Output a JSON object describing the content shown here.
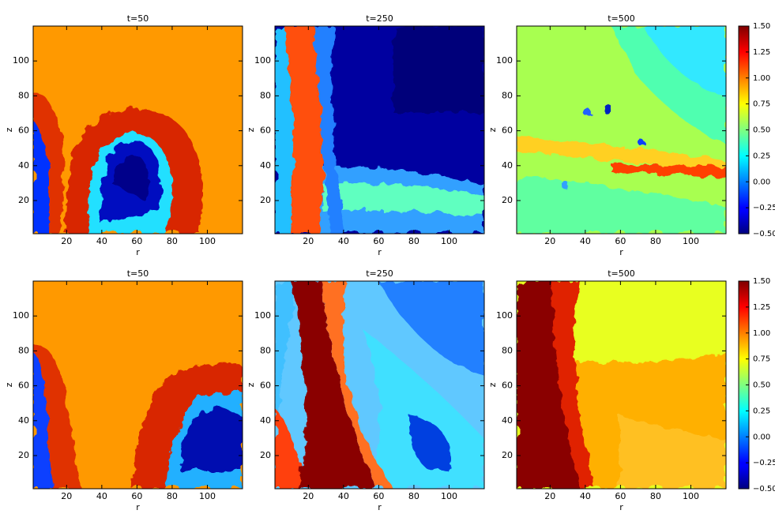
{
  "chart_data": [
    {
      "type": "heatmap",
      "title": "t=50",
      "xlabel": "r",
      "ylabel": "z",
      "xlim": [
        1,
        120
      ],
      "ylim": [
        1,
        120
      ],
      "xticks": [
        20,
        40,
        60,
        80,
        100
      ],
      "yticks": [
        20,
        40,
        60,
        80,
        100
      ]
    },
    {
      "type": "heatmap",
      "title": "t=250",
      "xlabel": "r",
      "ylabel": "z",
      "xlim": [
        1,
        120
      ],
      "ylim": [
        1,
        120
      ],
      "xticks": [
        20,
        40,
        60,
        80,
        100
      ],
      "yticks": [
        20,
        40,
        60,
        80,
        100
      ]
    },
    {
      "type": "heatmap",
      "title": "t=500",
      "xlabel": "r",
      "ylabel": "z",
      "xlim": [
        1,
        120
      ],
      "ylim": [
        1,
        120
      ],
      "xticks": [
        20,
        40,
        60,
        80,
        100
      ],
      "yticks": [
        20,
        40,
        60,
        80,
        100
      ]
    },
    {
      "type": "heatmap",
      "title": "t=50",
      "xlabel": "r",
      "ylabel": "z",
      "xlim": [
        1,
        120
      ],
      "ylim": [
        1,
        120
      ],
      "xticks": [
        20,
        40,
        60,
        80,
        100
      ],
      "yticks": [
        20,
        40,
        60,
        80,
        100
      ]
    },
    {
      "type": "heatmap",
      "title": "t=250",
      "xlabel": "r",
      "ylabel": "z",
      "xlim": [
        1,
        120
      ],
      "ylim": [
        1,
        120
      ],
      "xticks": [
        20,
        40,
        60,
        80,
        100
      ],
      "yticks": [
        20,
        40,
        60,
        80,
        100
      ]
    },
    {
      "type": "heatmap",
      "title": "t=500",
      "xlabel": "r",
      "ylabel": "z",
      "xlim": [
        1,
        120
      ],
      "ylim": [
        1,
        120
      ],
      "xticks": [
        20,
        40,
        60,
        80,
        100
      ],
      "yticks": [
        20,
        40,
        60,
        80,
        100
      ]
    },
    {
      "type": "colorbar",
      "colormap": "jet",
      "clim": [
        -0.5,
        1.5
      ],
      "ticks": [
        {
          "value": -0.5,
          "label": "−0.50"
        },
        {
          "value": -0.25,
          "label": "−0.25"
        },
        {
          "value": 0,
          "label": "0.00"
        },
        {
          "value": 0.25,
          "label": "0.25"
        },
        {
          "value": 0.5,
          "label": "0.50"
        },
        {
          "value": 0.75,
          "label": "0.75"
        },
        {
          "value": 1,
          "label": "1.00"
        },
        {
          "value": 1.25,
          "label": "1.25"
        },
        {
          "value": 1.5,
          "label": "1.50"
        }
      ]
    },
    {
      "type": "colorbar",
      "colormap": "jet",
      "clim": [
        -0.5,
        1.5
      ],
      "ticks": [
        {
          "value": -0.5,
          "label": "−0.50"
        },
        {
          "value": -0.25,
          "label": "−0.25"
        },
        {
          "value": 0,
          "label": "0.00"
        },
        {
          "value": 0.25,
          "label": "0.25"
        },
        {
          "value": 0.5,
          "label": "0.50"
        },
        {
          "value": 0.75,
          "label": "0.75"
        },
        {
          "value": 1,
          "label": "1.00"
        },
        {
          "value": 1.25,
          "label": "1.25"
        },
        {
          "value": 1.5,
          "label": "1.50"
        }
      ]
    }
  ]
}
